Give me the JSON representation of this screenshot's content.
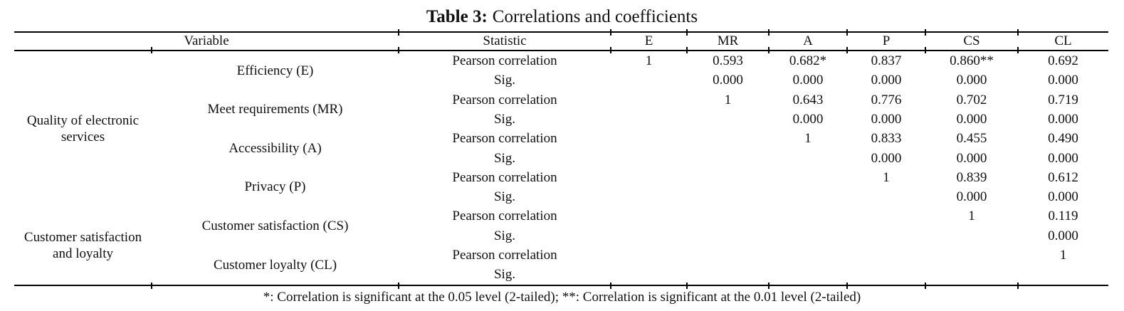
{
  "title": {
    "prefix": "Table 3:",
    "text": "Correlations and coefficients"
  },
  "table": {
    "header": {
      "variable": "Variable",
      "statistic": "Statistic",
      "columns": [
        "E",
        "MR",
        "A",
        "P",
        "CS",
        "CL"
      ]
    },
    "statistic_labels": {
      "pearson": "Pearson correlation",
      "sig": "Sig."
    },
    "groups": [
      {
        "name": "Quality of electronic services",
        "variables": [
          {
            "name": "Efficiency (E)",
            "pearson": [
              "1",
              "0.593",
              "0.682*",
              "0.837",
              "0.860**",
              "0.692"
            ],
            "sig": [
              "",
              "0.000",
              "0.000",
              "0.000",
              "0.000",
              "0.000"
            ]
          },
          {
            "name": "Meet requirements (MR)",
            "pearson": [
              "",
              "1",
              "0.643",
              "0.776",
              "0.702",
              "0.719"
            ],
            "sig": [
              "",
              "",
              "0.000",
              "0.000",
              "0.000",
              "0.000"
            ]
          },
          {
            "name": "Accessibility (A)",
            "pearson": [
              "",
              "",
              "1",
              "0.833",
              "0.455",
              "0.490"
            ],
            "sig": [
              "",
              "",
              "",
              "0.000",
              "0.000",
              "0.000"
            ]
          },
          {
            "name": "Privacy (P)",
            "pearson": [
              "",
              "",
              "",
              "1",
              "0.839",
              "0.612"
            ],
            "sig": [
              "",
              "",
              "",
              "",
              "0.000",
              "0.000"
            ]
          }
        ]
      },
      {
        "name": "Customer satisfaction and loyalty",
        "variables": [
          {
            "name": "Customer satisfaction (CS)",
            "pearson": [
              "",
              "",
              "",
              "",
              "1",
              "0.119"
            ],
            "sig": [
              "",
              "",
              "",
              "",
              "",
              "0.000"
            ]
          },
          {
            "name": "Customer loyalty (CL)",
            "pearson": [
              "",
              "",
              "",
              "",
              "",
              "1"
            ],
            "sig": [
              "",
              "",
              "",
              "",
              "",
              ""
            ]
          }
        ]
      }
    ]
  },
  "footnote": "*: Correlation is significant at the 0.05 level (2-tailed); **: Correlation is significant at the 0.01 level (2-tailed)"
}
